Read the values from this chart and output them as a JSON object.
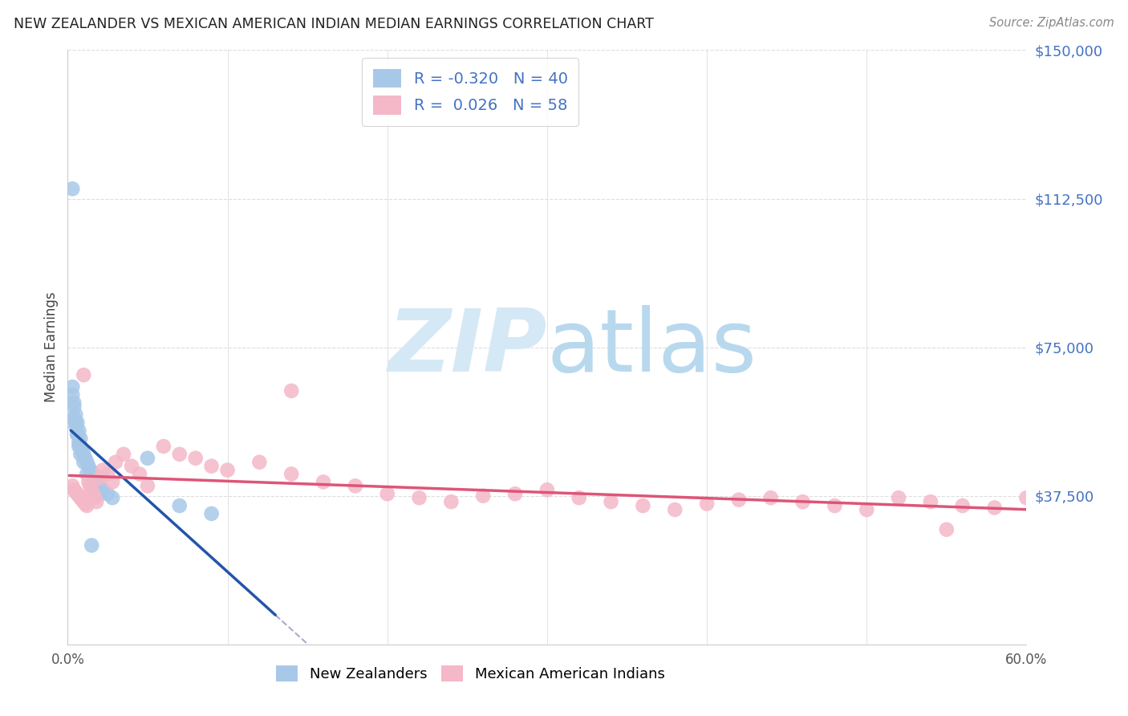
{
  "title": "NEW ZEALANDER VS MEXICAN AMERICAN INDIAN MEDIAN EARNINGS CORRELATION CHART",
  "source": "Source: ZipAtlas.com",
  "ylabel": "Median Earnings",
  "x_min": 0.0,
  "x_max": 0.6,
  "y_min": 0,
  "y_max": 150000,
  "yticks": [
    0,
    37500,
    75000,
    112500,
    150000
  ],
  "ytick_labels": [
    "",
    "$37,500",
    "$75,000",
    "$112,500",
    "$150,000"
  ],
  "xtick_positions": [
    0.0,
    0.1,
    0.2,
    0.3,
    0.4,
    0.5,
    0.6
  ],
  "xtick_labels": [
    "0.0%",
    "",
    "",
    "",
    "",
    "",
    "60.0%"
  ],
  "blue_color": "#a8c8e8",
  "pink_color": "#f4b8c8",
  "blue_line_color": "#2255aa",
  "pink_line_color": "#dd5577",
  "dashed_color": "#aaaacc",
  "watermark_color": "#d5e8f5",
  "background_color": "#ffffff",
  "grid_color": "#dddddd",
  "blue_N": 40,
  "pink_N": 58,
  "legend_r1": "-0.320",
  "legend_n1": "40",
  "legend_r2": "0.026",
  "legend_n2": "58",
  "blue_x": [
    0.004,
    0.005,
    0.006,
    0.007,
    0.008,
    0.003,
    0.004,
    0.005,
    0.006,
    0.007,
    0.008,
    0.009,
    0.01,
    0.011,
    0.012,
    0.013,
    0.014,
    0.015,
    0.016,
    0.017,
    0.018,
    0.02,
    0.022,
    0.025,
    0.028,
    0.003,
    0.004,
    0.005,
    0.006,
    0.007,
    0.008,
    0.01,
    0.012,
    0.015,
    0.02,
    0.05,
    0.07,
    0.09,
    0.003,
    0.015
  ],
  "blue_y": [
    60000,
    58000,
    56000,
    54000,
    52000,
    63000,
    57000,
    55000,
    53000,
    51000,
    50000,
    49000,
    48000,
    47000,
    46000,
    45000,
    44000,
    43500,
    43000,
    42000,
    41000,
    40000,
    39000,
    38000,
    37000,
    65000,
    61000,
    56000,
    53000,
    50000,
    48000,
    46000,
    43000,
    40000,
    38000,
    47000,
    35000,
    33000,
    115000,
    25000
  ],
  "pink_x": [
    0.003,
    0.004,
    0.005,
    0.006,
    0.007,
    0.008,
    0.009,
    0.01,
    0.011,
    0.012,
    0.013,
    0.014,
    0.015,
    0.016,
    0.017,
    0.018,
    0.02,
    0.022,
    0.025,
    0.028,
    0.03,
    0.035,
    0.04,
    0.045,
    0.05,
    0.06,
    0.07,
    0.08,
    0.09,
    0.1,
    0.12,
    0.14,
    0.16,
    0.18,
    0.2,
    0.22,
    0.24,
    0.26,
    0.28,
    0.3,
    0.32,
    0.34,
    0.36,
    0.38,
    0.4,
    0.42,
    0.44,
    0.46,
    0.48,
    0.5,
    0.52,
    0.54,
    0.56,
    0.58,
    0.6,
    0.01,
    0.14,
    0.55
  ],
  "pink_y": [
    40000,
    39000,
    38500,
    38000,
    37500,
    37000,
    36500,
    36000,
    35500,
    35000,
    41000,
    40000,
    39000,
    38000,
    37000,
    36000,
    42000,
    44000,
    43000,
    41000,
    46000,
    48000,
    45000,
    43000,
    40000,
    50000,
    48000,
    47000,
    45000,
    44000,
    46000,
    43000,
    41000,
    40000,
    38000,
    37000,
    36000,
    37500,
    38000,
    39000,
    37000,
    36000,
    35000,
    34000,
    35500,
    36500,
    37000,
    36000,
    35000,
    34000,
    37000,
    36000,
    35000,
    34500,
    37000,
    68000,
    64000,
    29000
  ]
}
